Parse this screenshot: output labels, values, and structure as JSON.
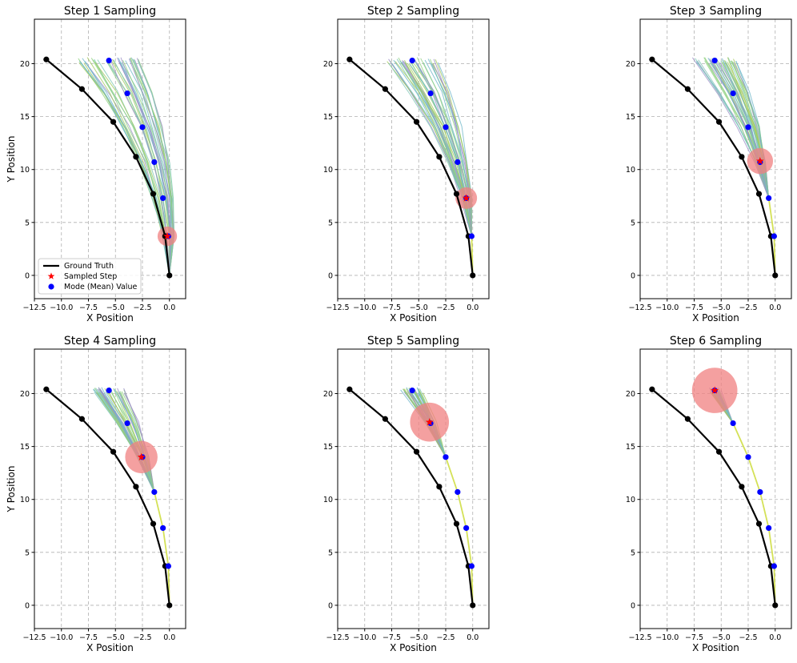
{
  "chart_data": {
    "type": "line",
    "layout": "2x3 grid of subplots",
    "x_label": "X Position",
    "y_label": "Y Position",
    "xlim": [
      -12.5,
      1.5
    ],
    "ylim": [
      -2.2,
      24.2
    ],
    "x_ticks": [
      -12.5,
      -10.0,
      -7.5,
      -5.0,
      -2.5,
      0.0
    ],
    "x_tick_labels": [
      "−12.5",
      "−10.0",
      "−7.5",
      "−5.0",
      "−2.5",
      "0.0"
    ],
    "y_ticks": [
      0,
      5,
      10,
      15,
      20
    ],
    "y_tick_labels": [
      "0",
      "5",
      "10",
      "15",
      "20"
    ],
    "grid": true,
    "legend": {
      "placement": "lower-left",
      "entries": [
        "Ground Truth",
        "Sampled Step",
        "Mode (Mean) Value"
      ]
    },
    "colors": {
      "ground_truth": "#000000",
      "sampled_step": "#ff0000",
      "mode": "#0000ff",
      "uncertainty_circle": "#f08080",
      "predicted_path": "#d4e157",
      "samples": [
        "#8fd17f",
        "#7ec8b4",
        "#9b8fc7",
        "#a3c95c",
        "#6fb7c9"
      ]
    },
    "ground_truth": [
      {
        "x": 0.0,
        "y": 0.0
      },
      {
        "x": -0.4,
        "y": 3.7
      },
      {
        "x": -1.5,
        "y": 7.7
      },
      {
        "x": -3.1,
        "y": 11.2
      },
      {
        "x": -5.2,
        "y": 14.5
      },
      {
        "x": -8.1,
        "y": 17.6
      },
      {
        "x": -11.4,
        "y": 20.4
      }
    ],
    "mode_values": [
      {
        "x": -0.1,
        "y": 3.7
      },
      {
        "x": -0.6,
        "y": 7.3
      },
      {
        "x": -1.4,
        "y": 10.7
      },
      {
        "x": -2.5,
        "y": 14.0
      },
      {
        "x": -3.9,
        "y": 17.2
      },
      {
        "x": -5.6,
        "y": 20.3
      }
    ],
    "subplots": [
      {
        "title": "Step 1 Sampling",
        "step": 1,
        "sampled": {
          "x": -0.2,
          "y": 3.7
        },
        "uncertainty_radius": 0.9
      },
      {
        "title": "Step 2 Sampling",
        "step": 2,
        "sampled": {
          "x": -0.6,
          "y": 7.3
        },
        "uncertainty_radius": 1.0
      },
      {
        "title": "Step 3 Sampling",
        "step": 3,
        "sampled": {
          "x": -1.4,
          "y": 10.8
        },
        "uncertainty_radius": 1.2
      },
      {
        "title": "Step 4 Sampling",
        "step": 4,
        "sampled": {
          "x": -2.6,
          "y": 14.0
        },
        "uncertainty_radius": 1.5
      },
      {
        "title": "Step 5 Sampling",
        "step": 5,
        "sampled": {
          "x": -4.0,
          "y": 17.3
        },
        "uncertainty_radius": 1.8
      },
      {
        "title": "Step 6 Sampling",
        "step": 6,
        "sampled": {
          "x": -5.6,
          "y": 20.3
        },
        "uncertainty_radius": 2.1
      }
    ]
  }
}
